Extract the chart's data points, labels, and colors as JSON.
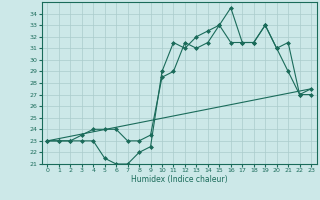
{
  "xlabel": "Humidex (Indice chaleur)",
  "xlim": [
    -0.5,
    23.5
  ],
  "ylim": [
    21,
    35
  ],
  "yticks": [
    21,
    22,
    23,
    24,
    25,
    26,
    27,
    28,
    29,
    30,
    31,
    32,
    33,
    34
  ],
  "xticks": [
    0,
    1,
    2,
    3,
    4,
    5,
    6,
    7,
    8,
    9,
    10,
    11,
    12,
    13,
    14,
    15,
    16,
    17,
    18,
    19,
    20,
    21,
    22,
    23
  ],
  "bg_color": "#cce8e8",
  "line_color": "#1a6b5a",
  "grid_color": "#aacccc",
  "line1_x": [
    0,
    1,
    2,
    3,
    4,
    5,
    6,
    7,
    8,
    9,
    10,
    11,
    12,
    13,
    14,
    15,
    16,
    17,
    18,
    19,
    20,
    21,
    22,
    23
  ],
  "line1_y": [
    23,
    23,
    23,
    23,
    23,
    21.5,
    21,
    21,
    22,
    22.5,
    29,
    31.5,
    31,
    32,
    32.5,
    33,
    34.5,
    31.5,
    31.5,
    33,
    31,
    29,
    27,
    27
  ],
  "line2_x": [
    0,
    1,
    2,
    3,
    4,
    5,
    6,
    7,
    8,
    9,
    10,
    11,
    12,
    13,
    14,
    15,
    16,
    17,
    18,
    19,
    20,
    21,
    22,
    23
  ],
  "line2_y": [
    23,
    23,
    23,
    23.5,
    24,
    24,
    24,
    23,
    23,
    23.5,
    28.5,
    29,
    31.5,
    31,
    31.5,
    33,
    31.5,
    31.5,
    31.5,
    33,
    31,
    31.5,
    27,
    27.5
  ],
  "line3_x": [
    0,
    23
  ],
  "line3_y": [
    23,
    27.5
  ]
}
